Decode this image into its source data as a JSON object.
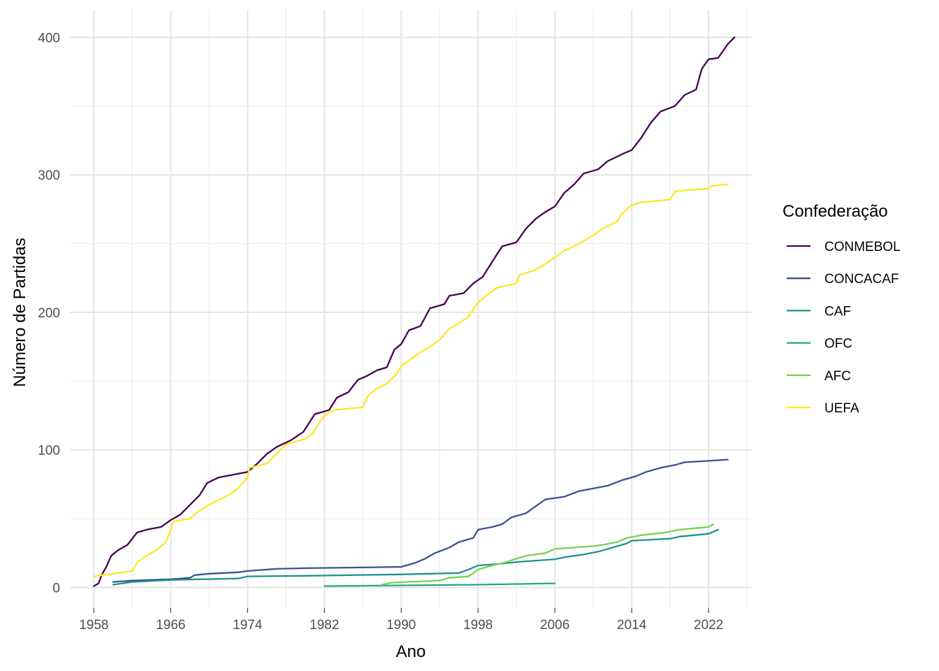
{
  "chart_data": {
    "type": "line",
    "xlabel": "Ano",
    "ylabel": "Número de Partidas",
    "xlim": [
      1955.5,
      2026.5
    ],
    "ylim": [
      -15,
      420
    ],
    "x_ticks": [
      1958,
      1966,
      1974,
      1982,
      1990,
      1998,
      2006,
      2014,
      2022
    ],
    "y_ticks": [
      0,
      100,
      200,
      300,
      400
    ],
    "grid": true,
    "legend_position": "right",
    "legend_title": "Confederação",
    "series": [
      {
        "name": "CONMEBOL",
        "color": "#440154",
        "points": [
          [
            1958.0,
            1
          ],
          [
            1958.5,
            3
          ],
          [
            1958.8,
            9
          ],
          [
            1959.3,
            15
          ],
          [
            1959.8,
            23
          ],
          [
            1960.5,
            27
          ],
          [
            1961.5,
            31
          ],
          [
            1962.5,
            40
          ],
          [
            1963.5,
            42
          ],
          [
            1965.0,
            44
          ],
          [
            1966.0,
            49
          ],
          [
            1967.0,
            53
          ],
          [
            1968.0,
            60
          ],
          [
            1969.0,
            67
          ],
          [
            1969.8,
            76
          ],
          [
            1971.0,
            80
          ],
          [
            1972.5,
            82
          ],
          [
            1974.0,
            84
          ],
          [
            1975.0,
            90
          ],
          [
            1976.0,
            97
          ],
          [
            1977.0,
            102
          ],
          [
            1978.5,
            107
          ],
          [
            1979.8,
            113
          ],
          [
            1981.0,
            126
          ],
          [
            1982.5,
            129
          ],
          [
            1983.3,
            138
          ],
          [
            1984.5,
            142
          ],
          [
            1985.5,
            151
          ],
          [
            1986.5,
            154
          ],
          [
            1987.5,
            158
          ],
          [
            1988.5,
            160
          ],
          [
            1989.3,
            173
          ],
          [
            1990.0,
            177
          ],
          [
            1990.8,
            187
          ],
          [
            1992.0,
            190
          ],
          [
            1993.0,
            203
          ],
          [
            1994.5,
            206
          ],
          [
            1995.0,
            212
          ],
          [
            1996.5,
            214
          ],
          [
            1997.5,
            221
          ],
          [
            1998.5,
            226
          ],
          [
            1999.5,
            237
          ],
          [
            2000.5,
            248
          ],
          [
            2002.0,
            251
          ],
          [
            2003.0,
            261
          ],
          [
            2004.0,
            268
          ],
          [
            2005.0,
            273
          ],
          [
            2006.0,
            277
          ],
          [
            2007.0,
            287
          ],
          [
            2008.0,
            293
          ],
          [
            2009.0,
            301
          ],
          [
            2010.5,
            304
          ],
          [
            2011.5,
            310
          ],
          [
            2013.0,
            315
          ],
          [
            2014.0,
            318
          ],
          [
            2015.0,
            327
          ],
          [
            2016.0,
            338
          ],
          [
            2017.0,
            346
          ],
          [
            2018.5,
            350
          ],
          [
            2019.5,
            358
          ],
          [
            2020.7,
            362
          ],
          [
            2021.3,
            377
          ],
          [
            2022.0,
            384
          ],
          [
            2023.0,
            385
          ],
          [
            2023.5,
            390
          ],
          [
            2024.0,
            395
          ],
          [
            2024.7,
            400
          ]
        ]
      },
      {
        "name": "CONCACAF",
        "color": "#3b528b",
        "points": [
          [
            1960.0,
            4
          ],
          [
            1962.0,
            5
          ],
          [
            1964.0,
            5.5
          ],
          [
            1966.0,
            6
          ],
          [
            1968.0,
            7
          ],
          [
            1968.5,
            9
          ],
          [
            1970.0,
            10
          ],
          [
            1973.0,
            11
          ],
          [
            1974.0,
            12
          ],
          [
            1977.0,
            13.5
          ],
          [
            1980.0,
            14
          ],
          [
            1986.0,
            14.5
          ],
          [
            1990.0,
            15
          ],
          [
            1991.5,
            18
          ],
          [
            1992.5,
            21
          ],
          [
            1993.5,
            25
          ],
          [
            1995.0,
            29
          ],
          [
            1996.0,
            33
          ],
          [
            1997.5,
            36
          ],
          [
            1998.0,
            42
          ],
          [
            1999.5,
            44
          ],
          [
            2000.5,
            46
          ],
          [
            2001.5,
            51
          ],
          [
            2003.0,
            54
          ],
          [
            2004.0,
            59
          ],
          [
            2005.0,
            64
          ],
          [
            2007.0,
            66
          ],
          [
            2008.5,
            70
          ],
          [
            2010.0,
            72
          ],
          [
            2011.5,
            74
          ],
          [
            2013.0,
            78
          ],
          [
            2014.5,
            81
          ],
          [
            2015.5,
            84
          ],
          [
            2017.0,
            87
          ],
          [
            2018.5,
            89
          ],
          [
            2019.5,
            91
          ],
          [
            2022.0,
            92
          ],
          [
            2024.0,
            93
          ]
        ]
      },
      {
        "name": "CAF",
        "color": "#21918c",
        "points": [
          [
            1960.0,
            2
          ],
          [
            1962.0,
            4
          ],
          [
            1966.0,
            5.5
          ],
          [
            1973.0,
            6.5
          ],
          [
            1974.0,
            8
          ],
          [
            1980.0,
            8.5
          ],
          [
            1990.0,
            9.5
          ],
          [
            1996.0,
            10.5
          ],
          [
            1997.0,
            13
          ],
          [
            1998.0,
            16
          ],
          [
            2000.0,
            17
          ],
          [
            2002.0,
            18.5
          ],
          [
            2004.0,
            19.5
          ],
          [
            2006.0,
            20.5
          ],
          [
            2007.0,
            22
          ],
          [
            2009.0,
            24
          ],
          [
            2010.5,
            26
          ],
          [
            2012.0,
            29
          ],
          [
            2013.5,
            32
          ],
          [
            2014.0,
            34
          ],
          [
            2018.0,
            35.5
          ],
          [
            2019.0,
            37
          ],
          [
            2022.0,
            39
          ],
          [
            2023.0,
            42
          ]
        ]
      },
      {
        "name": "OFC",
        "color": "#22a884",
        "points": [
          [
            1982.0,
            1
          ],
          [
            1990.0,
            1.5
          ],
          [
            1998.0,
            2
          ],
          [
            2006.0,
            3
          ]
        ]
      },
      {
        "name": "AFC",
        "color": "#7ad151",
        "points": [
          [
            1988.0,
            2
          ],
          [
            1989.0,
            3.5
          ],
          [
            1994.0,
            5
          ],
          [
            1995.0,
            7
          ],
          [
            1997.0,
            8
          ],
          [
            1998.0,
            13
          ],
          [
            1999.5,
            16
          ],
          [
            2001.0,
            18.5
          ],
          [
            2002.0,
            21
          ],
          [
            2003.0,
            23
          ],
          [
            2005.0,
            25
          ],
          [
            2006.0,
            28
          ],
          [
            2010.0,
            30
          ],
          [
            2011.0,
            31
          ],
          [
            2012.5,
            33
          ],
          [
            2013.5,
            36
          ],
          [
            2015.0,
            38
          ],
          [
            2017.5,
            40
          ],
          [
            2019.0,
            42
          ],
          [
            2022.0,
            44
          ],
          [
            2022.5,
            46
          ]
        ]
      },
      {
        "name": "UEFA",
        "color": "#fde725",
        "points": [
          [
            1958.0,
            8
          ],
          [
            1958.8,
            9
          ],
          [
            1960.0,
            10
          ],
          [
            1962.0,
            12
          ],
          [
            1962.5,
            18
          ],
          [
            1963.5,
            23
          ],
          [
            1964.5,
            27
          ],
          [
            1965.5,
            33
          ],
          [
            1966.0,
            42
          ],
          [
            1966.3,
            48
          ],
          [
            1968.0,
            50
          ],
          [
            1969.0,
            56
          ],
          [
            1970.5,
            62
          ],
          [
            1972.0,
            67
          ],
          [
            1973.0,
            72
          ],
          [
            1974.0,
            80
          ],
          [
            1974.2,
            87
          ],
          [
            1976.0,
            90
          ],
          [
            1977.0,
            97
          ],
          [
            1978.0,
            104
          ],
          [
            1980.0,
            108
          ],
          [
            1980.8,
            112
          ],
          [
            1981.5,
            120
          ],
          [
            1982.0,
            125
          ],
          [
            1983.0,
            129
          ],
          [
            1986.0,
            131
          ],
          [
            1986.5,
            139
          ],
          [
            1987.5,
            145
          ],
          [
            1988.5,
            148
          ],
          [
            1989.5,
            155
          ],
          [
            1990.0,
            161
          ],
          [
            1991.0,
            166
          ],
          [
            1992.0,
            171
          ],
          [
            1993.0,
            175
          ],
          [
            1994.0,
            180
          ],
          [
            1995.0,
            188
          ],
          [
            1996.0,
            192
          ],
          [
            1997.0,
            197
          ],
          [
            1998.0,
            207
          ],
          [
            1999.0,
            213
          ],
          [
            2000.0,
            218
          ],
          [
            2002.0,
            221
          ],
          [
            2002.3,
            227
          ],
          [
            2004.0,
            231
          ],
          [
            2005.0,
            235
          ],
          [
            2006.0,
            240
          ],
          [
            2007.0,
            245
          ],
          [
            2008.0,
            248
          ],
          [
            2010.0,
            256
          ],
          [
            2011.0,
            261
          ],
          [
            2012.5,
            266
          ],
          [
            2013.0,
            272
          ],
          [
            2014.0,
            278
          ],
          [
            2015.0,
            280
          ],
          [
            2018.0,
            282
          ],
          [
            2018.5,
            288
          ],
          [
            2020.0,
            289
          ],
          [
            2022.0,
            290
          ],
          [
            2022.3,
            292
          ],
          [
            2024.0,
            293
          ]
        ]
      }
    ]
  }
}
